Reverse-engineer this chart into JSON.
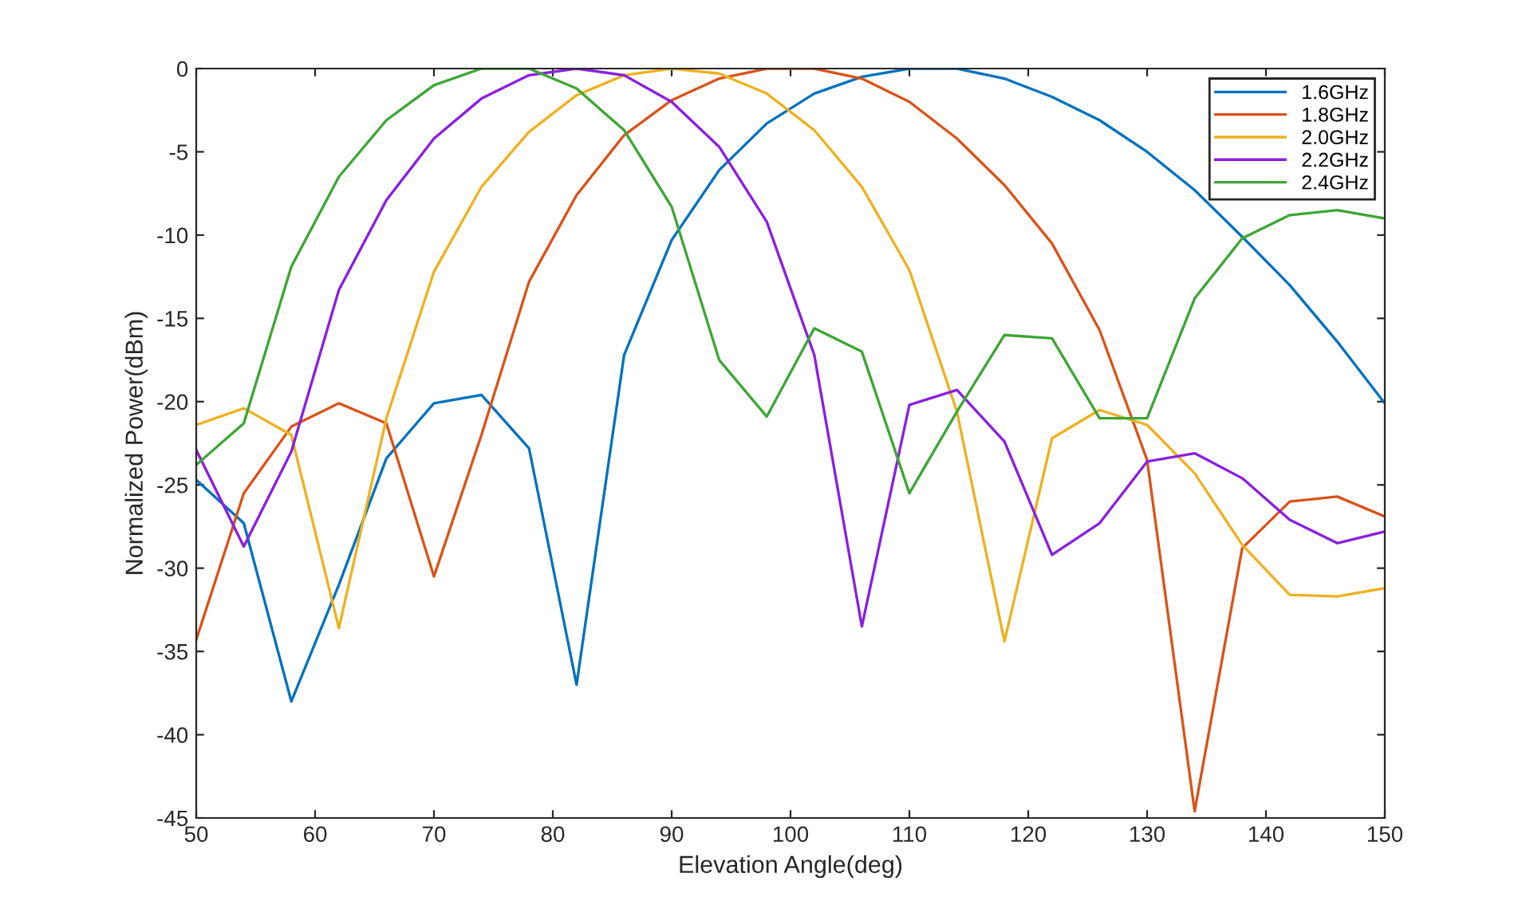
{
  "chart_data": {
    "type": "line",
    "xlabel": "Elevation Angle(deg)",
    "ylabel": "Normalized Power(dBm)",
    "x": [
      50,
      54,
      58,
      62,
      66,
      70,
      74,
      78,
      82,
      86,
      90,
      94,
      98,
      102,
      106,
      110,
      114,
      118,
      122,
      126,
      130,
      134,
      138,
      142,
      146,
      150
    ],
    "series": [
      {
        "name": "1.6GHz",
        "color": "#0072bd",
        "values": [
          -24.7,
          -27.3,
          -38,
          -31,
          -23.4,
          -20.1,
          -19.6,
          -22.8,
          -37,
          -17.2,
          -10.3,
          -6.1,
          -3.3,
          -1.5,
          -0.5,
          0,
          0,
          -0.6,
          -1.7,
          -3.1,
          -5.0,
          -7.3,
          -10.1,
          -13,
          -16.4,
          -20.1
        ]
      },
      {
        "name": "1.8GHz",
        "color": "#d95319",
        "values": [
          -34.3,
          -25.5,
          -21.5,
          -20.1,
          -21.3,
          -30.5,
          -22,
          -12.8,
          -7.6,
          -4,
          -1.9,
          -0.6,
          0,
          0,
          -0.6,
          -2.0,
          -4.2,
          -7.0,
          -10.5,
          -15.7,
          -23.5,
          -44.6,
          -28.8,
          -26,
          -25.7,
          -26.9
        ]
      },
      {
        "name": "2.0GHz",
        "color": "#edb120",
        "values": [
          -21.4,
          -20.4,
          -22,
          -33.6,
          -21,
          -12.2,
          -7.1,
          -3.8,
          -1.6,
          -0.4,
          0,
          -0.3,
          -1.5,
          -3.7,
          -7.1,
          -12.1,
          -20.6,
          -34.4,
          -22.2,
          -20.5,
          -21.4,
          -24.3,
          -28.6,
          -31.6,
          -31.7,
          -31.2
        ]
      },
      {
        "name": "2.2GHz",
        "color": "#8a1fe0",
        "values": [
          -22.9,
          -28.7,
          -23,
          -13.3,
          -7.9,
          -4.2,
          -1.8,
          -0.4,
          0,
          -0.4,
          -2.0,
          -4.7,
          -9.2,
          -17.2,
          -33.5,
          -20.2,
          -19.3,
          -22.4,
          -29.2,
          -27.3,
          -23.6,
          -23.1,
          -24.6,
          -27.1,
          -28.5,
          -27.8
        ]
      },
      {
        "name": "2.4GHz",
        "color": "#3ea535",
        "values": [
          -23.8,
          -21.3,
          -11.9,
          -6.5,
          -3.1,
          -1.0,
          0,
          0,
          -1.2,
          -3.7,
          -8.3,
          -17.5,
          -20.9,
          -15.6,
          -17,
          -25.5,
          -20.6,
          -16,
          -16.2,
          -21,
          -21,
          -13.8,
          -10.2,
          -8.8,
          -8.5,
          -9
        ]
      }
    ],
    "xlim": [
      50,
      150
    ],
    "xticks": [
      50,
      60,
      70,
      80,
      90,
      100,
      110,
      120,
      130,
      140,
      150
    ],
    "ylim": [
      -45,
      0
    ],
    "yticks": [
      -45,
      -40,
      -35,
      -30,
      -25,
      -20,
      -15,
      -10,
      -5,
      0
    ],
    "legend": "top right",
    "marker": "none",
    "line_style": "solid"
  }
}
